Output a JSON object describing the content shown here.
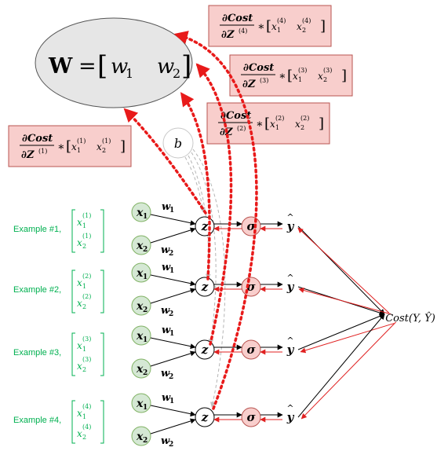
{
  "weights_label": {
    "bold_symbol": "W",
    "equals": "=",
    "w1": "w",
    "w1_sub": "1",
    "w2": "w",
    "w2_sub": "2"
  },
  "bias_label": "b",
  "gradient_boxes": [
    {
      "numerator": "∂Cost",
      "denominator": "∂Z",
      "sup": "(1)",
      "times": "∗",
      "x": "x",
      "idx1": "1",
      "idx2": "2"
    },
    {
      "numerator": "∂Cost",
      "denominator": "∂Z",
      "sup": "(2)",
      "times": "∗",
      "x": "x",
      "idx1": "1",
      "idx2": "2"
    },
    {
      "numerator": "∂Cost",
      "denominator": "∂Z",
      "sup": "(3)",
      "times": "∗",
      "x": "x",
      "idx1": "1",
      "idx2": "2"
    },
    {
      "numerator": "∂Cost",
      "denominator": "∂Z",
      "sup": "(4)",
      "times": "∗",
      "x": "x",
      "idx1": "1",
      "idx2": "2"
    }
  ],
  "examples": [
    {
      "label": "Example #1,",
      "sup": "(1)"
    },
    {
      "label": "Example #2,",
      "sup": "(2)"
    },
    {
      "label": "Example #3,",
      "sup": "(3)"
    },
    {
      "label": "Example #4,",
      "sup": "(4)"
    }
  ],
  "nodes": {
    "x": "x",
    "x1_sub": "1",
    "x2_sub": "2",
    "w": "w",
    "w1_sub": "1",
    "w2_sub": "2",
    "z": "z",
    "sigma": "σ",
    "yhat": "y",
    "hat": "^"
  },
  "cost_label": "Cost(Y, Ŷ)",
  "colors": {
    "green_fill": "#d5e8d4",
    "green_stroke": "#82b366",
    "green_text": "#00b050",
    "red_fill": "#f8cecc",
    "red_stroke": "#b85450",
    "red_arrow": "#e02020",
    "dotted_red": "#e81a1a",
    "ellipse_fill": "#e6e6e6",
    "gray_dash": "#b0b0b0"
  }
}
